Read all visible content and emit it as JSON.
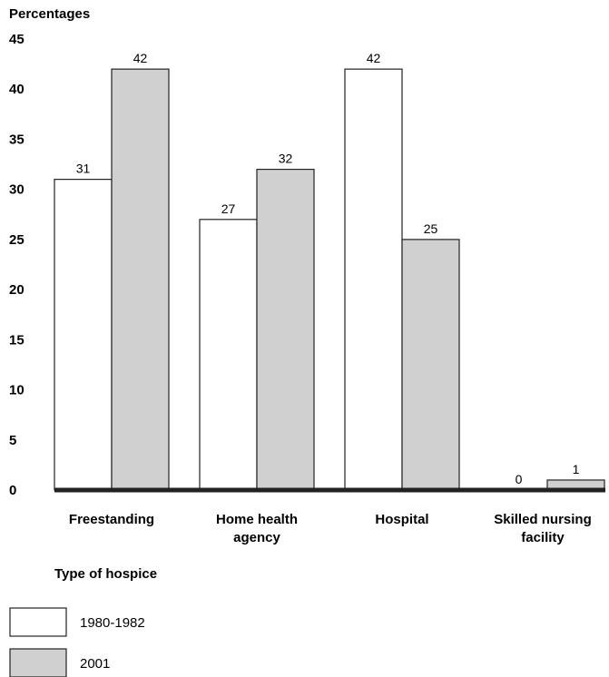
{
  "chart_data": {
    "type": "bar",
    "ylabel": "Percentages",
    "xlabel": "Type of hospice",
    "ylim": [
      0,
      45
    ],
    "yticks": [
      0,
      5,
      10,
      15,
      20,
      25,
      30,
      35,
      40,
      45
    ],
    "categories": [
      [
        "Freestanding"
      ],
      [
        "Home health",
        "agency"
      ],
      [
        "Hospital"
      ],
      [
        "Skilled nursing",
        "facility"
      ]
    ],
    "series": [
      {
        "name": "1980-1982",
        "values": [
          31,
          27,
          42,
          0
        ],
        "color": "#ffffff"
      },
      {
        "name": "2001",
        "values": [
          42,
          32,
          25,
          1
        ],
        "color": "#d0d0d0"
      }
    ],
    "legend_position": "bottom-left",
    "grid": false
  }
}
